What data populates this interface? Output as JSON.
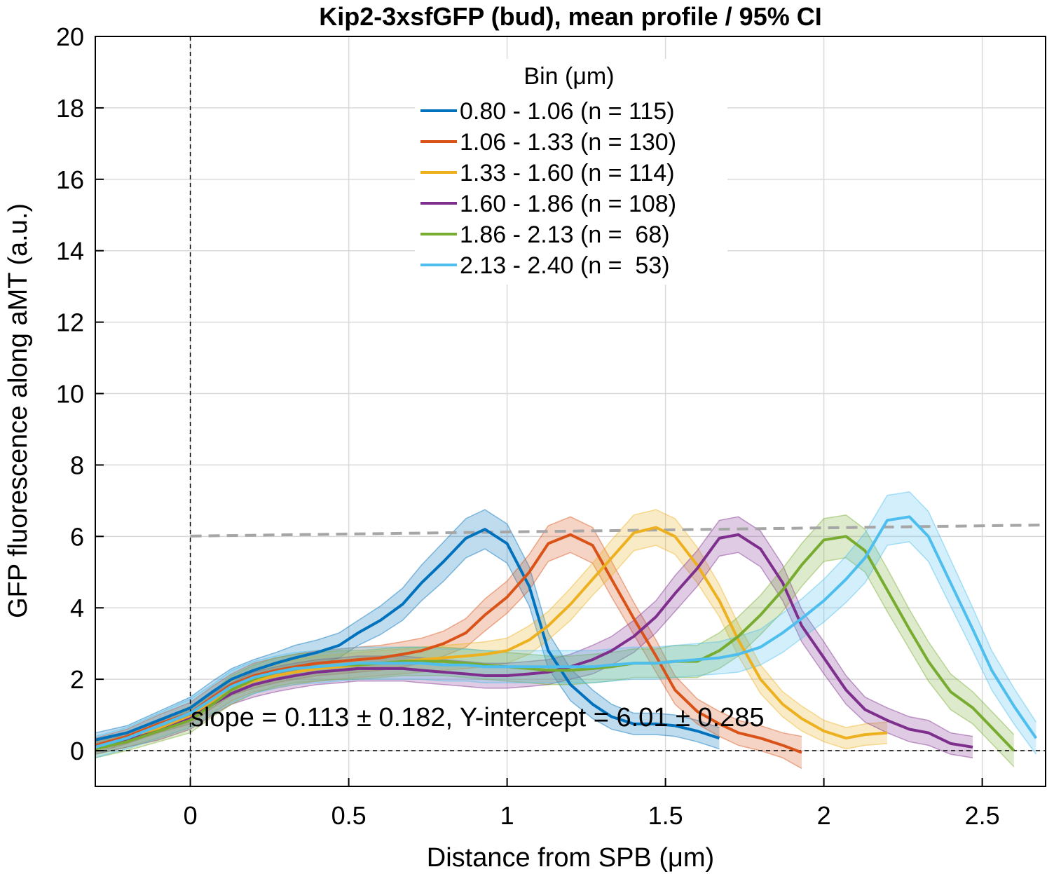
{
  "chart_data": {
    "type": "line",
    "title": "Kip2-3xsfGFP (bud), mean profile / 95% CI",
    "xlabel": "Distance from SPB (μm)",
    "ylabel": "GFP fluorescence along aMT (a.u.)",
    "xlim": [
      -0.3,
      2.7
    ],
    "ylim": [
      -1,
      20
    ],
    "xticks": [
      0,
      0.5,
      1,
      1.5,
      2,
      2.5
    ],
    "xtick_labels": [
      "0",
      "0.5",
      "1",
      "1.5",
      "2",
      "2.5"
    ],
    "yticks": [
      0,
      2,
      4,
      6,
      8,
      10,
      12,
      14,
      16,
      18,
      20
    ],
    "ytick_labels": [
      "0",
      "2",
      "4",
      "6",
      "8",
      "10",
      "12",
      "14",
      "16",
      "18",
      "20"
    ],
    "grid": true,
    "legend": {
      "title": "Bin (μm)",
      "placement": "top-center"
    },
    "annotation": "slope = 0.113 ± 0.182, Y-intercept = 6.01 ± 0.285",
    "reference_lines": {
      "vertical_x": 0,
      "horizontal_y": 0
    },
    "fit_line": {
      "x": [
        0,
        2.7
      ],
      "y": [
        6.01,
        6.32
      ],
      "color": "#a6a6a6"
    },
    "series": [
      {
        "name": "0.80 - 1.06 (n = 115)",
        "color": "#0072BD",
        "x": [
          -0.3,
          -0.2,
          -0.1,
          0,
          0.07,
          0.13,
          0.2,
          0.27,
          0.33,
          0.4,
          0.47,
          0.53,
          0.6,
          0.67,
          0.73,
          0.8,
          0.87,
          0.93,
          1.0,
          1.07,
          1.13,
          1.2,
          1.27,
          1.33,
          1.4,
          1.47,
          1.53,
          1.6,
          1.67
        ],
        "y": [
          0.3,
          0.5,
          0.85,
          1.2,
          1.65,
          2.0,
          2.25,
          2.45,
          2.6,
          2.75,
          2.95,
          3.3,
          3.65,
          4.1,
          4.7,
          5.3,
          5.95,
          6.2,
          5.8,
          4.6,
          2.8,
          1.85,
          1.3,
          0.95,
          0.75,
          0.75,
          0.7,
          0.55,
          0.35
        ],
        "ci": [
          0.2,
          0.2,
          0.25,
          0.3,
          0.3,
          0.3,
          0.3,
          0.3,
          0.35,
          0.35,
          0.35,
          0.35,
          0.4,
          0.45,
          0.5,
          0.55,
          0.55,
          0.55,
          0.55,
          0.55,
          0.5,
          0.45,
          0.4,
          0.35,
          0.3,
          0.3,
          0.3,
          0.3,
          0.3
        ]
      },
      {
        "name": "1.06 - 1.33 (n = 130)",
        "color": "#D95319",
        "x": [
          -0.3,
          -0.2,
          -0.1,
          0,
          0.07,
          0.13,
          0.2,
          0.27,
          0.33,
          0.4,
          0.47,
          0.53,
          0.6,
          0.67,
          0.73,
          0.8,
          0.87,
          0.93,
          1.0,
          1.07,
          1.13,
          1.2,
          1.27,
          1.33,
          1.4,
          1.47,
          1.53,
          1.6,
          1.67,
          1.73,
          1.8,
          1.87,
          1.93
        ],
        "y": [
          0.15,
          0.4,
          0.75,
          1.05,
          1.5,
          1.85,
          2.1,
          2.25,
          2.35,
          2.45,
          2.5,
          2.55,
          2.6,
          2.7,
          2.8,
          3.0,
          3.3,
          3.8,
          4.3,
          5.0,
          5.8,
          6.05,
          5.75,
          4.8,
          3.7,
          2.65,
          1.7,
          1.1,
          0.75,
          0.5,
          0.35,
          0.15,
          -0.05
        ],
        "ci": [
          0.2,
          0.2,
          0.25,
          0.3,
          0.3,
          0.3,
          0.35,
          0.35,
          0.35,
          0.35,
          0.35,
          0.35,
          0.35,
          0.35,
          0.35,
          0.35,
          0.4,
          0.45,
          0.45,
          0.5,
          0.5,
          0.5,
          0.5,
          0.5,
          0.45,
          0.45,
          0.4,
          0.35,
          0.35,
          0.35,
          0.35,
          0.35,
          0.45
        ]
      },
      {
        "name": "1.33 - 1.60 (n = 114)",
        "color": "#EDB120",
        "x": [
          -0.3,
          -0.2,
          -0.1,
          0,
          0.07,
          0.13,
          0.2,
          0.27,
          0.33,
          0.4,
          0.47,
          0.53,
          0.6,
          0.67,
          0.73,
          0.8,
          0.87,
          0.93,
          1.0,
          1.07,
          1.13,
          1.2,
          1.27,
          1.33,
          1.4,
          1.47,
          1.53,
          1.6,
          1.67,
          1.73,
          1.8,
          1.87,
          1.93,
          2.0,
          2.07,
          2.13,
          2.2
        ],
        "y": [
          0.1,
          0.3,
          0.6,
          0.95,
          1.35,
          1.7,
          1.95,
          2.1,
          2.2,
          2.3,
          2.35,
          2.4,
          2.45,
          2.5,
          2.55,
          2.6,
          2.65,
          2.7,
          2.8,
          3.1,
          3.5,
          4.1,
          4.8,
          5.4,
          6.1,
          6.25,
          6.0,
          5.2,
          4.2,
          3.1,
          2.0,
          1.3,
          0.9,
          0.55,
          0.35,
          0.45,
          0.5
        ],
        "ci": [
          0.2,
          0.2,
          0.25,
          0.3,
          0.3,
          0.3,
          0.3,
          0.35,
          0.35,
          0.35,
          0.35,
          0.35,
          0.35,
          0.35,
          0.35,
          0.35,
          0.35,
          0.35,
          0.35,
          0.4,
          0.4,
          0.45,
          0.45,
          0.5,
          0.5,
          0.5,
          0.5,
          0.5,
          0.45,
          0.45,
          0.4,
          0.35,
          0.35,
          0.3,
          0.3,
          0.3,
          0.3
        ]
      },
      {
        "name": "1.60 - 1.86 (n = 108)",
        "color": "#7E2F8E",
        "x": [
          -0.3,
          -0.2,
          -0.1,
          0,
          0.07,
          0.13,
          0.2,
          0.27,
          0.33,
          0.4,
          0.47,
          0.53,
          0.6,
          0.67,
          0.73,
          0.8,
          0.87,
          0.93,
          1.0,
          1.07,
          1.13,
          1.2,
          1.27,
          1.33,
          1.4,
          1.47,
          1.53,
          1.6,
          1.67,
          1.73,
          1.8,
          1.87,
          1.93,
          2.0,
          2.07,
          2.13,
          2.2,
          2.27,
          2.33,
          2.4,
          2.47
        ],
        "y": [
          0.1,
          0.3,
          0.55,
          0.9,
          1.3,
          1.6,
          1.85,
          2.0,
          2.1,
          2.2,
          2.25,
          2.3,
          2.3,
          2.3,
          2.25,
          2.2,
          2.15,
          2.1,
          2.1,
          2.15,
          2.2,
          2.35,
          2.55,
          2.8,
          3.2,
          3.75,
          4.4,
          5.1,
          5.95,
          6.05,
          5.65,
          4.7,
          3.5,
          2.6,
          1.7,
          1.15,
          0.85,
          0.6,
          0.5,
          0.2,
          0.1
        ],
        "ci": [
          0.2,
          0.2,
          0.25,
          0.3,
          0.3,
          0.3,
          0.35,
          0.35,
          0.35,
          0.35,
          0.35,
          0.35,
          0.35,
          0.35,
          0.35,
          0.35,
          0.35,
          0.35,
          0.35,
          0.35,
          0.35,
          0.35,
          0.4,
          0.4,
          0.45,
          0.45,
          0.5,
          0.5,
          0.5,
          0.5,
          0.5,
          0.5,
          0.45,
          0.45,
          0.4,
          0.35,
          0.35,
          0.35,
          0.35,
          0.3,
          0.3
        ]
      },
      {
        "name": "1.86 - 2.13 (n =  68)",
        "color": "#77AC30",
        "x": [
          -0.3,
          -0.2,
          -0.1,
          0,
          0.07,
          0.13,
          0.2,
          0.27,
          0.33,
          0.4,
          0.47,
          0.53,
          0.6,
          0.67,
          0.73,
          0.8,
          0.87,
          0.93,
          1.0,
          1.07,
          1.13,
          1.2,
          1.27,
          1.33,
          1.4,
          1.47,
          1.53,
          1.6,
          1.67,
          1.73,
          1.8,
          1.87,
          1.93,
          2.0,
          2.07,
          2.13,
          2.2,
          2.27,
          2.33,
          2.4,
          2.47,
          2.53,
          2.6
        ],
        "y": [
          0.05,
          0.25,
          0.55,
          0.85,
          1.3,
          1.7,
          2.0,
          2.2,
          2.3,
          2.35,
          2.4,
          2.4,
          2.45,
          2.5,
          2.5,
          2.5,
          2.45,
          2.4,
          2.35,
          2.3,
          2.25,
          2.25,
          2.3,
          2.35,
          2.45,
          2.45,
          2.5,
          2.5,
          2.8,
          3.2,
          3.8,
          4.5,
          5.2,
          5.9,
          6.0,
          5.6,
          4.5,
          3.4,
          2.5,
          1.65,
          1.2,
          0.65,
          0.0
        ],
        "ci": [
          0.25,
          0.25,
          0.3,
          0.35,
          0.35,
          0.4,
          0.4,
          0.4,
          0.4,
          0.4,
          0.4,
          0.4,
          0.4,
          0.4,
          0.4,
          0.4,
          0.4,
          0.4,
          0.4,
          0.4,
          0.4,
          0.4,
          0.4,
          0.4,
          0.4,
          0.4,
          0.45,
          0.45,
          0.5,
          0.55,
          0.55,
          0.6,
          0.6,
          0.6,
          0.6,
          0.6,
          0.6,
          0.55,
          0.55,
          0.5,
          0.45,
          0.45,
          0.45
        ]
      },
      {
        "name": "2.13 - 2.40 (n =  53)",
        "color": "#4DBEEE",
        "x": [
          -0.3,
          -0.2,
          -0.1,
          0,
          0.07,
          0.13,
          0.2,
          0.27,
          0.33,
          0.4,
          0.47,
          0.53,
          0.6,
          0.67,
          0.73,
          0.8,
          0.87,
          0.93,
          1.0,
          1.07,
          1.13,
          1.2,
          1.27,
          1.33,
          1.4,
          1.47,
          1.53,
          1.6,
          1.67,
          1.73,
          1.8,
          1.87,
          1.93,
          2.0,
          2.07,
          2.13,
          2.2,
          2.27,
          2.33,
          2.4,
          2.47,
          2.53,
          2.6,
          2.67
        ],
        "y": [
          0.1,
          0.35,
          0.7,
          1.05,
          1.45,
          1.8,
          2.05,
          2.2,
          2.3,
          2.35,
          2.4,
          2.45,
          2.45,
          2.45,
          2.45,
          2.4,
          2.4,
          2.35,
          2.35,
          2.35,
          2.35,
          2.35,
          2.35,
          2.4,
          2.45,
          2.45,
          2.5,
          2.55,
          2.6,
          2.7,
          2.9,
          3.3,
          3.7,
          4.2,
          4.8,
          5.4,
          6.45,
          6.55,
          6.0,
          4.7,
          3.4,
          2.25,
          1.25,
          0.35
        ],
        "ci": [
          0.3,
          0.3,
          0.35,
          0.4,
          0.4,
          0.45,
          0.45,
          0.45,
          0.45,
          0.45,
          0.45,
          0.45,
          0.45,
          0.45,
          0.45,
          0.45,
          0.45,
          0.45,
          0.45,
          0.45,
          0.45,
          0.45,
          0.45,
          0.45,
          0.45,
          0.45,
          0.45,
          0.45,
          0.45,
          0.5,
          0.5,
          0.55,
          0.55,
          0.6,
          0.65,
          0.7,
          0.7,
          0.7,
          0.7,
          0.65,
          0.6,
          0.55,
          0.5,
          0.45
        ]
      }
    ]
  }
}
